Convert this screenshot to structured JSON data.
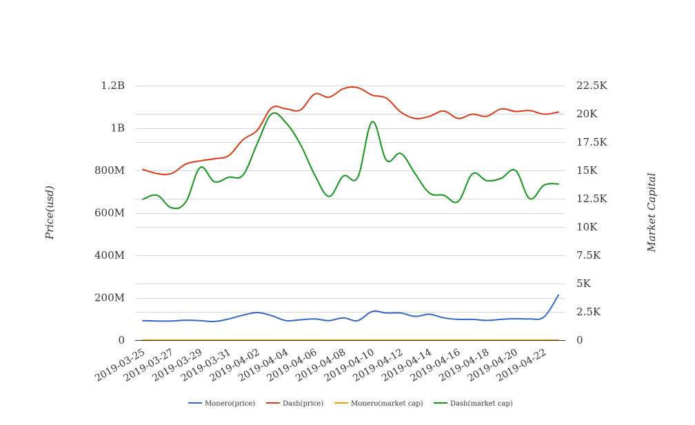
{
  "chart_data": {
    "type": "line",
    "x": [
      "2019-03-25",
      "2019-03-26",
      "2019-03-27",
      "2019-03-28",
      "2019-03-29",
      "2019-03-30",
      "2019-03-31",
      "2019-04-01",
      "2019-04-02",
      "2019-04-03",
      "2019-04-04",
      "2019-04-05",
      "2019-04-06",
      "2019-04-07",
      "2019-04-08",
      "2019-04-09",
      "2019-04-10",
      "2019-04-11",
      "2019-04-12",
      "2019-04-13",
      "2019-04-14",
      "2019-04-15",
      "2019-04-16",
      "2019-04-17",
      "2019-04-18",
      "2019-04-19",
      "2019-04-20",
      "2019-04-21",
      "2019-04-22",
      "2019-04-23"
    ],
    "x_tick_labels": [
      "2019-03-25",
      "2019-03-27",
      "2019-03-29",
      "2019-03-31",
      "2019-04-02",
      "2019-04-04",
      "2019-04-06",
      "2019-04-08",
      "2019-04-10",
      "2019-04-12",
      "2019-04-14",
      "2019-04-16",
      "2019-04-18",
      "2019-04-20",
      "2019-04-22"
    ],
    "y_left": {
      "label": "Price(usd)",
      "range": [
        0,
        1200000000
      ],
      "ticks": [
        0,
        200000000,
        400000000,
        600000000,
        800000000,
        1000000000,
        1200000000
      ],
      "tick_labels": [
        "0",
        "200M",
        "400M",
        "600M",
        "800M",
        "1B",
        "1.2B"
      ]
    },
    "y_right": {
      "label": "Market Capital",
      "range": [
        0,
        22500
      ],
      "ticks": [
        0,
        2500,
        5000,
        7500,
        10000,
        12500,
        15000,
        17500,
        20000,
        22500
      ],
      "tick_labels": [
        "0",
        "2.5K",
        "5K",
        "7.5K",
        "10K",
        "12.5K",
        "15K",
        "17.5K",
        "20K",
        "22.5K"
      ]
    },
    "grid": true,
    "legend_position": "bottom",
    "series": [
      {
        "name": "Monero(price)",
        "axis": "left",
        "color": "#3366cc",
        "values": [
          92000000,
          90000000,
          90000000,
          94000000,
          92000000,
          88000000,
          100000000,
          118000000,
          130000000,
          115000000,
          92000000,
          96000000,
          100000000,
          92000000,
          105000000,
          92000000,
          135000000,
          128000000,
          128000000,
          112000000,
          122000000,
          105000000,
          98000000,
          98000000,
          93000000,
          98000000,
          101000000,
          100000000,
          110000000,
          213000000
        ]
      },
      {
        "name": "Dash(price)",
        "axis": "left",
        "color": "#dc3912",
        "values": [
          805000000,
          785000000,
          785000000,
          830000000,
          845000000,
          855000000,
          870000000,
          945000000,
          990000000,
          1095000000,
          1090000000,
          1085000000,
          1160000000,
          1145000000,
          1185000000,
          1190000000,
          1155000000,
          1140000000,
          1075000000,
          1045000000,
          1055000000,
          1080000000,
          1045000000,
          1065000000,
          1055000000,
          1090000000,
          1078000000,
          1082000000,
          1065000000,
          1075000000
        ]
      },
      {
        "name": "Monero(market cap)",
        "axis": "right",
        "color": "#ff9900",
        "values": [
          4,
          4,
          4,
          4,
          4,
          4,
          4,
          4,
          4,
          4,
          4,
          4,
          4,
          4,
          4,
          4,
          4,
          4,
          4,
          4,
          4,
          4,
          4,
          4,
          4,
          4,
          4,
          4,
          4,
          4
        ]
      },
      {
        "name": "Dash(market cap)",
        "axis": "right",
        "color": "#109618",
        "values": [
          12450,
          12800,
          11700,
          12200,
          15250,
          14000,
          14400,
          14600,
          17400,
          20000,
          19200,
          17300,
          14600,
          12700,
          14500,
          14400,
          19300,
          15900,
          16500,
          14700,
          13000,
          12800,
          12250,
          14700,
          14100,
          14300,
          15000,
          12500,
          13700,
          13800
        ]
      }
    ]
  }
}
